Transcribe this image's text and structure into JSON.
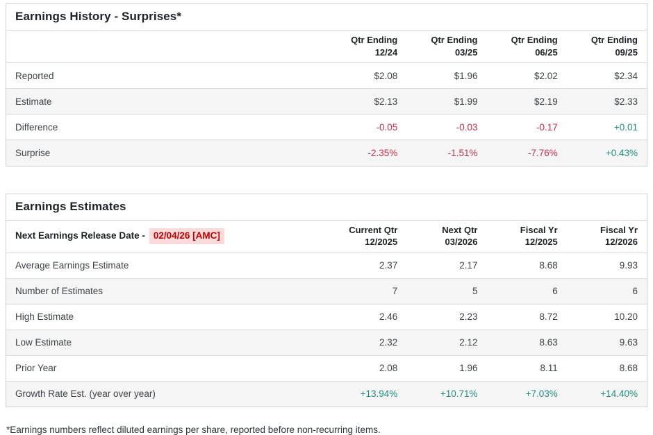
{
  "colors": {
    "negative_value": "#c5304c",
    "positive_value": "#1f8f7c",
    "release_date_text": "#c00000",
    "release_date_background": "#fbdada",
    "alternate_row_background": "#f5f5f5",
    "table_border": "#cfcfcf"
  },
  "history_table": {
    "title": "Earnings History - Surprises*",
    "columns": [
      "Qtr Ending\n12/24",
      "Qtr Ending\n03/25",
      "Qtr Ending\n06/25",
      "Qtr Ending\n09/25"
    ],
    "rows": [
      {
        "label": "Reported",
        "values": [
          "$2.08",
          "$1.96",
          "$2.02",
          "$2.34"
        ]
      },
      {
        "label": "Estimate",
        "values": [
          "$2.13",
          "$1.99",
          "$2.19",
          "$2.33"
        ]
      },
      {
        "label": "Difference",
        "values": [
          "-0.05",
          "-0.03",
          "-0.17",
          "+0.01"
        ]
      },
      {
        "label": "Surprise",
        "values": [
          "-2.35%",
          "-1.51%",
          "-7.76%",
          "+0.43%"
        ]
      }
    ]
  },
  "estimates_table": {
    "title": "Earnings Estimates",
    "release_date_label": "Next Earnings Release Date -",
    "release_date_value": "02/04/26 [AMC]",
    "columns": [
      "Current Qtr\n12/2025",
      "Next Qtr\n03/2026",
      "Fiscal Yr\n12/2025",
      "Fiscal Yr\n12/2026"
    ],
    "rows": [
      {
        "label": "Average Earnings Estimate",
        "values": [
          "2.37",
          "2.17",
          "8.68",
          "9.93"
        ]
      },
      {
        "label": "Number of Estimates",
        "values": [
          "7",
          "5",
          "6",
          "6"
        ]
      },
      {
        "label": "High Estimate",
        "values": [
          "2.46",
          "2.23",
          "8.72",
          "10.20"
        ]
      },
      {
        "label": "Low Estimate",
        "values": [
          "2.32",
          "2.12",
          "8.63",
          "9.63"
        ]
      },
      {
        "label": "Prior Year",
        "values": [
          "2.08",
          "1.96",
          "8.11",
          "8.68"
        ]
      },
      {
        "label": "Growth Rate Est. (year over year)",
        "values": [
          "+13.94%",
          "+10.71%",
          "+7.03%",
          "+14.40%"
        ]
      }
    ]
  },
  "footnote": "*Earnings numbers reflect diluted earnings per share, reported before non-recurring items."
}
